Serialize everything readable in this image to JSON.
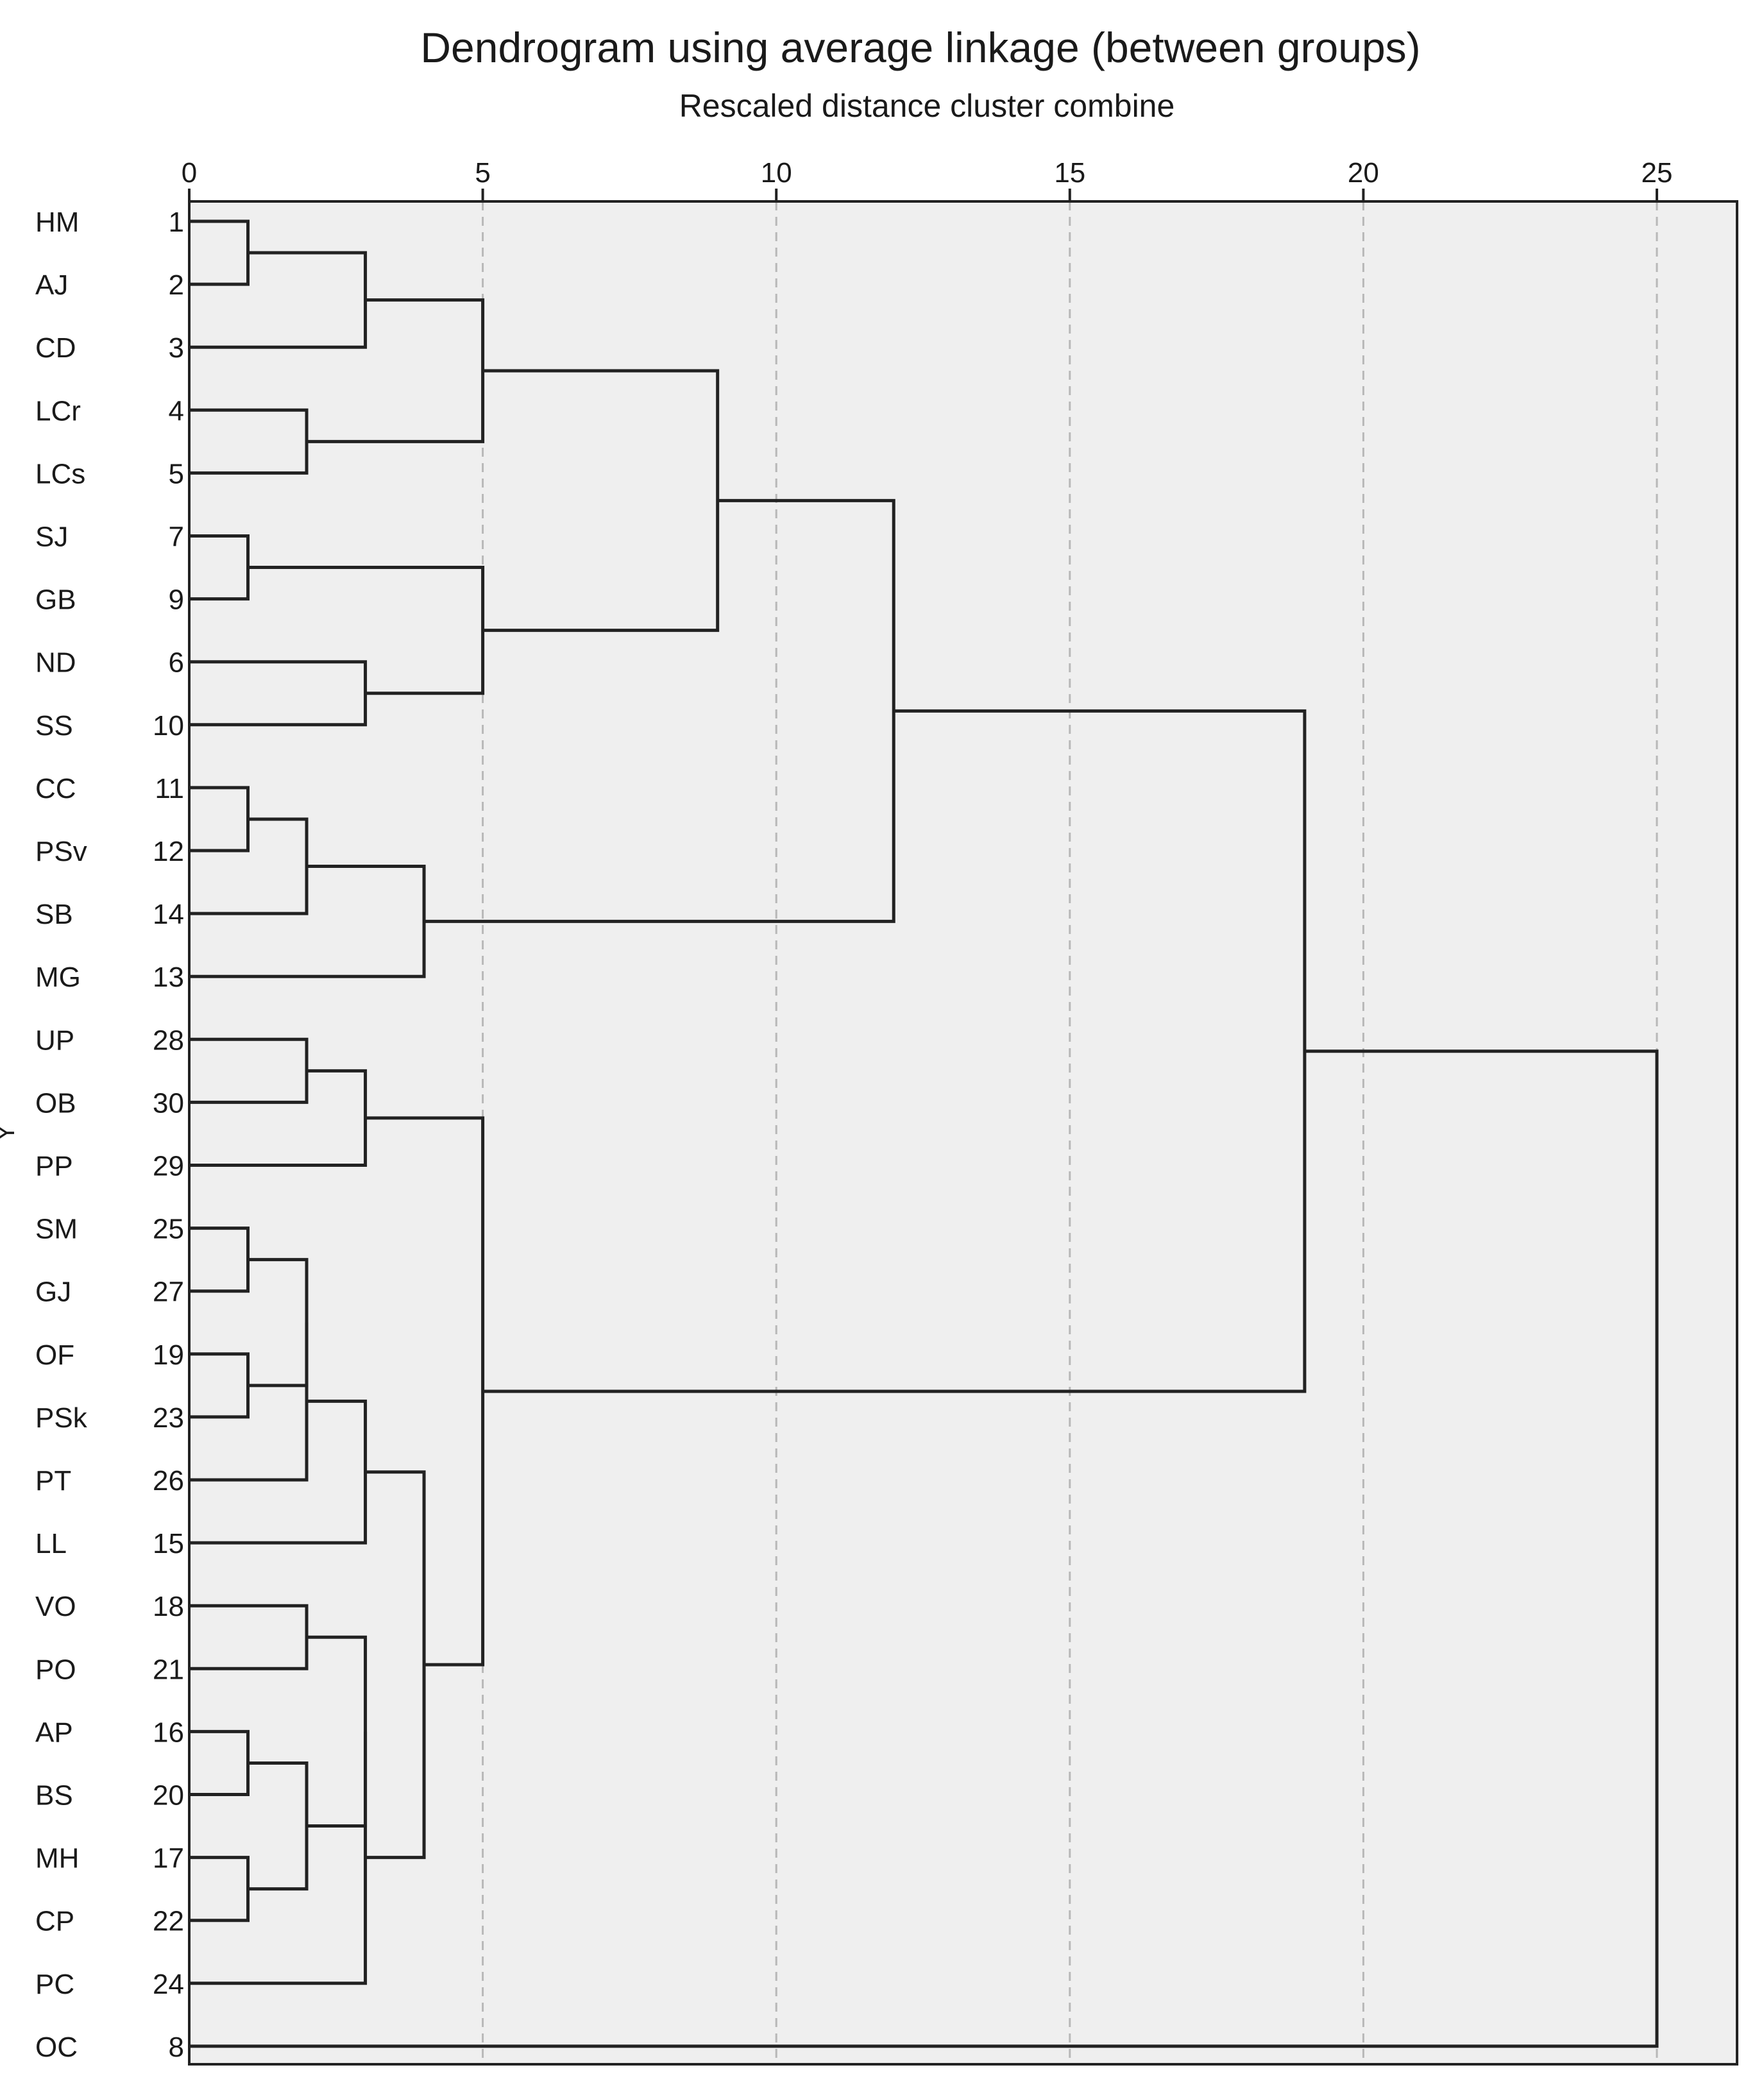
{
  "chart_data": {
    "type": "dendrogram",
    "title": "Dendrogram using average linkage (between groups)",
    "xlabel": "Rescaled distance cluster combine",
    "ylabel": "Y",
    "xlim": [
      0,
      25
    ],
    "xticks": [
      0,
      5,
      10,
      15,
      20,
      25
    ],
    "grid": "vertical dashed at each x tick",
    "leaves": [
      {
        "label": "HM",
        "case": "1"
      },
      {
        "label": "AJ",
        "case": "2"
      },
      {
        "label": "CD",
        "case": "3"
      },
      {
        "label": "LCr",
        "case": "4"
      },
      {
        "label": "LCs",
        "case": "5"
      },
      {
        "label": "SJ",
        "case": "7"
      },
      {
        "label": "GB",
        "case": "9"
      },
      {
        "label": "ND",
        "case": "6"
      },
      {
        "label": "SS",
        "case": "10"
      },
      {
        "label": "CC",
        "case": "11"
      },
      {
        "label": "PSv",
        "case": "12"
      },
      {
        "label": "SB",
        "case": "14"
      },
      {
        "label": "MG",
        "case": "13"
      },
      {
        "label": "UP",
        "case": "28"
      },
      {
        "label": "OB",
        "case": "30"
      },
      {
        "label": "PP",
        "case": "29"
      },
      {
        "label": "SM",
        "case": "25"
      },
      {
        "label": "GJ",
        "case": "27"
      },
      {
        "label": "OF",
        "case": "19"
      },
      {
        "label": "PSk",
        "case": "23"
      },
      {
        "label": "PT",
        "case": "26"
      },
      {
        "label": "LL",
        "case": "15"
      },
      {
        "label": "VO",
        "case": "18"
      },
      {
        "label": "PO",
        "case": "21"
      },
      {
        "label": "AP",
        "case": "16"
      },
      {
        "label": "BS",
        "case": "20"
      },
      {
        "label": "MH",
        "case": "17"
      },
      {
        "label": "CP",
        "case": "22"
      },
      {
        "label": "PC",
        "case": "24"
      },
      {
        "label": "OC",
        "case": "8"
      }
    ],
    "merges": [
      {
        "id": "m1",
        "left": "HM",
        "right": "AJ",
        "distance": 1
      },
      {
        "id": "m2",
        "left": "m1",
        "right": "CD",
        "distance": 3
      },
      {
        "id": "m3",
        "left": "LCr",
        "right": "LCs",
        "distance": 2
      },
      {
        "id": "m4",
        "left": "m2",
        "right": "m3",
        "distance": 5
      },
      {
        "id": "m5",
        "left": "SJ",
        "right": "GB",
        "distance": 1
      },
      {
        "id": "m6",
        "left": "ND",
        "right": "SS",
        "distance": 3
      },
      {
        "id": "m7",
        "left": "m5",
        "right": "m6",
        "distance": 5
      },
      {
        "id": "m8",
        "left": "m4",
        "right": "m7",
        "distance": 9
      },
      {
        "id": "m9",
        "left": "CC",
        "right": "PSv",
        "distance": 1
      },
      {
        "id": "m10",
        "left": "m9",
        "right": "SB",
        "distance": 2
      },
      {
        "id": "m11",
        "left": "m10",
        "right": "MG",
        "distance": 4
      },
      {
        "id": "m12",
        "left": "m8",
        "right": "m11",
        "distance": 12
      },
      {
        "id": "m13",
        "left": "UP",
        "right": "OB",
        "distance": 2
      },
      {
        "id": "m14",
        "left": "m13",
        "right": "PP",
        "distance": 3
      },
      {
        "id": "m15",
        "left": "SM",
        "right": "GJ",
        "distance": 1
      },
      {
        "id": "m16",
        "left": "OF",
        "right": "PSk",
        "distance": 1
      },
      {
        "id": "m17",
        "left": "m15",
        "right": "m16",
        "distance": 2
      },
      {
        "id": "m18",
        "left": "m17",
        "right": "PT",
        "distance": 2
      },
      {
        "id": "m19",
        "left": "m18",
        "right": "LL",
        "distance": 3
      },
      {
        "id": "m20",
        "left": "VO",
        "right": "PO",
        "distance": 2
      },
      {
        "id": "m21",
        "left": "AP",
        "right": "BS",
        "distance": 1
      },
      {
        "id": "m22",
        "left": "MH",
        "right": "CP",
        "distance": 1
      },
      {
        "id": "m23",
        "left": "m21",
        "right": "m22",
        "distance": 2
      },
      {
        "id": "m24",
        "left": "m20",
        "right": "m23",
        "distance": 3
      },
      {
        "id": "m25",
        "left": "m24",
        "right": "PC",
        "distance": 3
      },
      {
        "id": "m26",
        "left": "m19",
        "right": "m25",
        "distance": 4
      },
      {
        "id": "m27",
        "left": "m14",
        "right": "m26",
        "distance": 5
      },
      {
        "id": "m28",
        "left": "m12",
        "right": "m27",
        "distance": 19
      },
      {
        "id": "m29",
        "left": "m28",
        "right": "OC",
        "distance": 25
      }
    ]
  },
  "colors": {
    "plot_background": "#efefef",
    "link": "#222222",
    "grid": "#b8b8b8",
    "frame": "#222222"
  }
}
